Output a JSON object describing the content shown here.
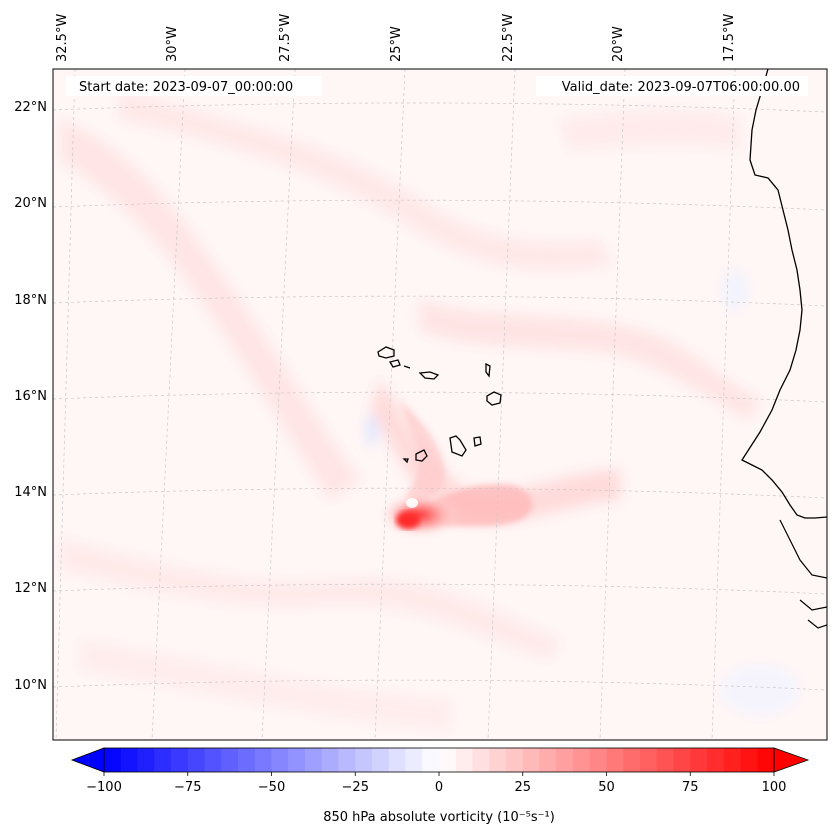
{
  "map": {
    "start_date": "Start date: 2023-09-07_00:00:00",
    "valid_date": "Valid_date: 2023-09-07T06:00:00.00",
    "lon_labels": [
      "32.5°W",
      "30°W",
      "27.5°W",
      "25°W",
      "22.5°W",
      "20°W",
      "17.5°W"
    ],
    "lat_labels": [
      "22°N",
      "20°N",
      "18°N",
      "16°N",
      "14°N",
      "12°N",
      "10°N"
    ],
    "features": [
      "coastline-west-africa",
      "cape-verde-islands"
    ]
  },
  "colorbar": {
    "ticks": [
      "−100",
      "−75",
      "−50",
      "−25",
      "0",
      "25",
      "50",
      "75",
      "100"
    ],
    "tick_values": [
      -100,
      -75,
      -50,
      -25,
      0,
      25,
      50,
      75,
      100
    ],
    "range": [
      -100,
      100
    ],
    "label": "850 hPa absolute vorticity (10⁻⁵s⁻¹)",
    "cmap": "bwr",
    "colors": {
      "negative": "#0000ff",
      "zero": "#ffffff",
      "positive": "#ff0000"
    }
  },
  "field": {
    "variable": "850 hPa absolute vorticity",
    "vortex_peak_value": 100,
    "vortex_location": "13.5°N, 24.5°W"
  }
}
